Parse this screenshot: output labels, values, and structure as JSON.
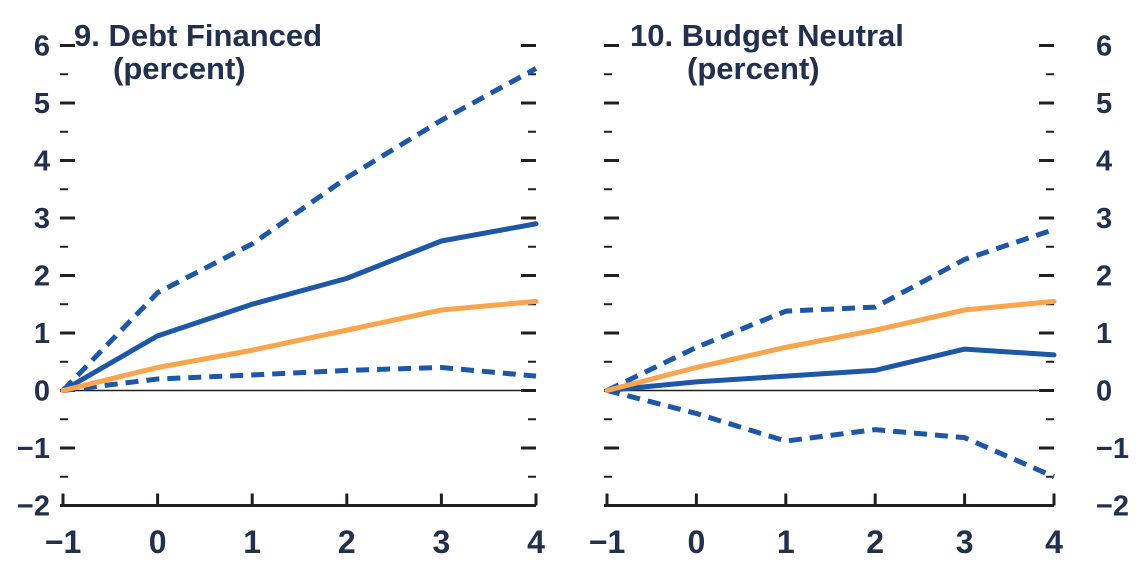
{
  "figure": {
    "kind": "two-panel line chart, fan-chart style with dashed confidence bands",
    "colors": {
      "line_blue": "#1d57a5",
      "line_orange": "#f8a54e",
      "text_navy": "#22304d",
      "axis_black": "#231f20"
    }
  },
  "chart_data": [
    {
      "type": "line",
      "title": "9. Debt Financed",
      "subtitle": "(percent)",
      "x": [
        -1,
        0,
        1,
        2,
        3,
        4
      ],
      "xlim": [
        -1,
        4
      ],
      "ylim": [
        -2,
        6
      ],
      "x_tick_labels": [
        "-1",
        "0",
        "1",
        "2",
        "3",
        "4"
      ],
      "y_tick_labels": [
        "-2",
        "-1",
        "0",
        "1",
        "2",
        "3",
        "4",
        "5",
        "6"
      ],
      "y_minor_step": 0.5,
      "y_label_side": "left",
      "zero_line": true,
      "grid": false,
      "legend": "none",
      "series": [
        {
          "name": "upper-dashed-band",
          "style": "dashed",
          "color": "#1d57a5",
          "values": [
            0,
            1.7,
            2.55,
            3.7,
            4.7,
            5.6
          ]
        },
        {
          "name": "lower-dashed-band",
          "style": "dashed",
          "color": "#1d57a5",
          "values": [
            0,
            0.2,
            0.27,
            0.35,
            0.4,
            0.25
          ]
        },
        {
          "name": "solid-blue-line",
          "style": "solid",
          "color": "#1d57a5",
          "values": [
            0,
            0.95,
            1.5,
            1.95,
            2.6,
            2.9
          ]
        },
        {
          "name": "orange-line",
          "style": "solid",
          "color": "#f8a54e",
          "values": [
            0,
            0.4,
            0.7,
            1.05,
            1.4,
            1.55
          ]
        }
      ]
    },
    {
      "type": "line",
      "title": "10. Budget Neutral",
      "subtitle": "(percent)",
      "x": [
        -1,
        0,
        1,
        2,
        3,
        4
      ],
      "xlim": [
        -1,
        4
      ],
      "ylim": [
        -2,
        6
      ],
      "x_tick_labels": [
        "-1",
        "0",
        "1",
        "2",
        "3",
        "4"
      ],
      "y_tick_labels": [
        "-2",
        "-1",
        "0",
        "1",
        "2",
        "3",
        "4",
        "5",
        "6"
      ],
      "y_minor_step": 0.5,
      "y_label_side": "right",
      "zero_line": true,
      "grid": false,
      "legend": "none",
      "series": [
        {
          "name": "upper-dashed-band",
          "style": "dashed",
          "color": "#1d57a5",
          "values": [
            0,
            0.75,
            1.38,
            1.45,
            2.28,
            2.8
          ]
        },
        {
          "name": "lower-dashed-band",
          "style": "dashed",
          "color": "#1d57a5",
          "values": [
            0,
            -0.4,
            -0.88,
            -0.68,
            -0.82,
            -1.5
          ]
        },
        {
          "name": "solid-blue-line",
          "style": "solid",
          "color": "#1d57a5",
          "values": [
            0,
            0.15,
            0.25,
            0.35,
            0.72,
            0.62
          ]
        },
        {
          "name": "orange-line",
          "style": "solid",
          "color": "#f8a54e",
          "values": [
            0,
            0.4,
            0.75,
            1.05,
            1.4,
            1.55
          ]
        }
      ]
    }
  ]
}
